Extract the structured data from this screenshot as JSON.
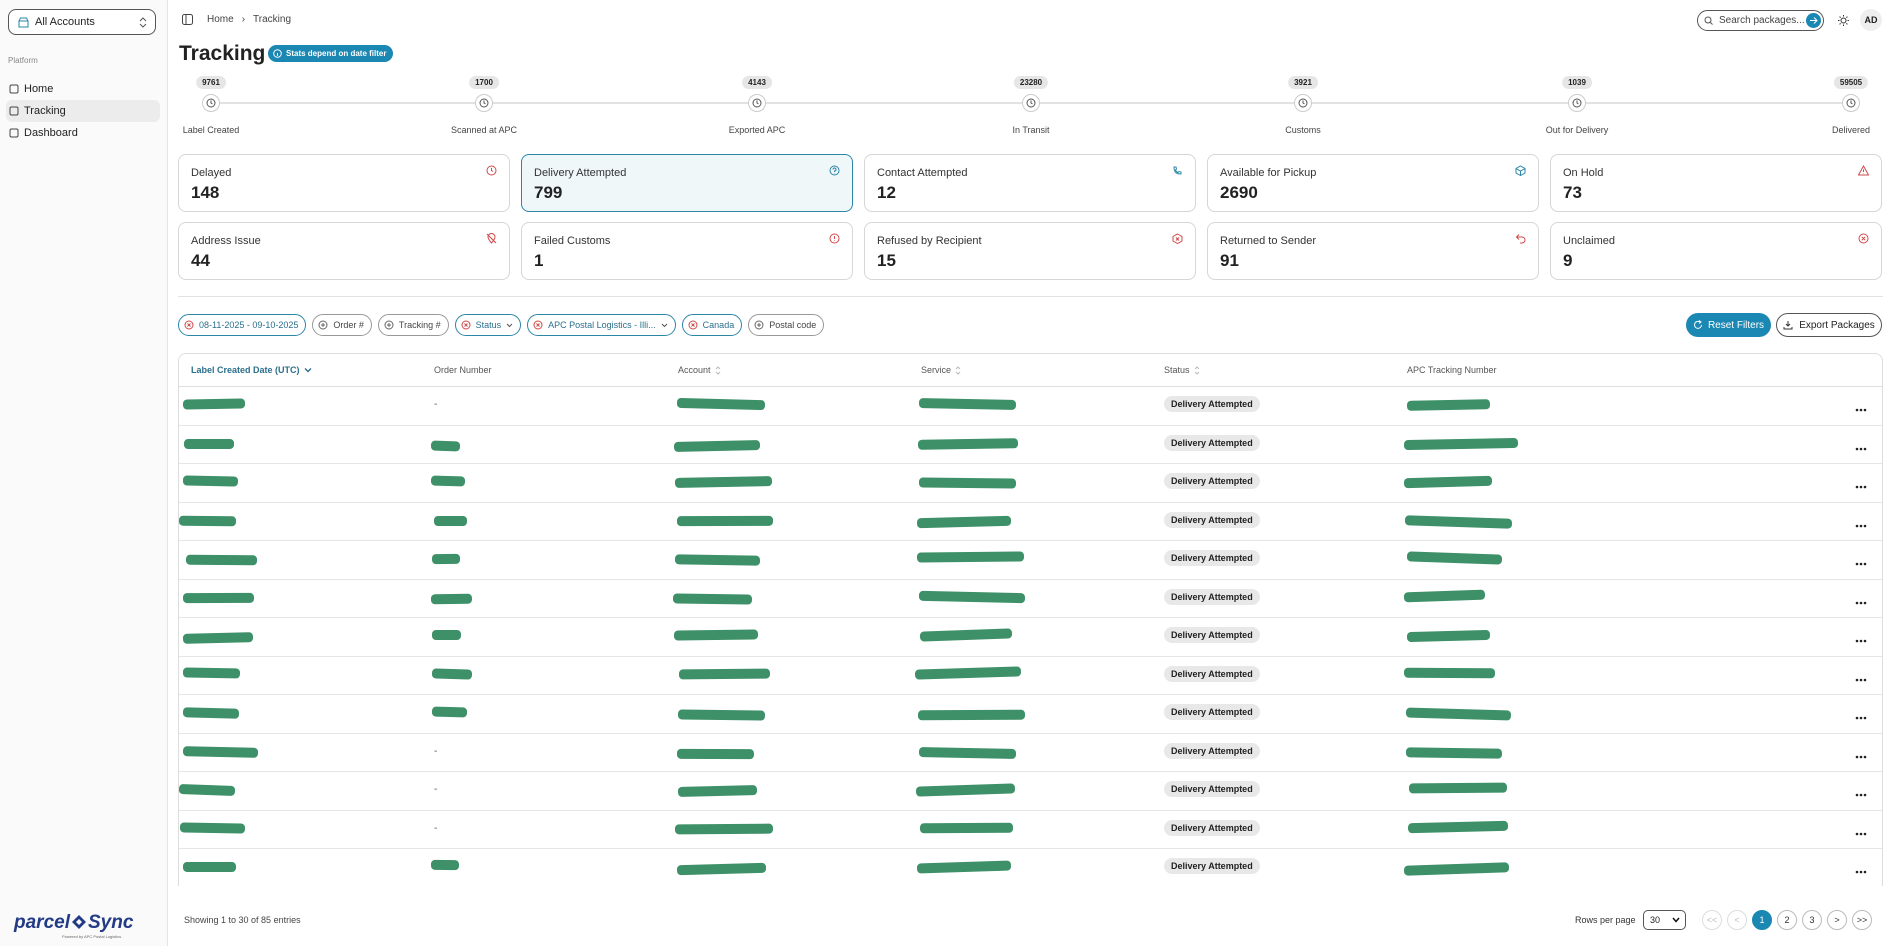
{
  "sidebar": {
    "account": "All Accounts",
    "section": "Platform",
    "nav": [
      "Home",
      "Tracking",
      "Dashboard"
    ],
    "logo_left": "parcel",
    "logo_right": "Sync",
    "logo_tagline": "Powered by APC Postal Logistics"
  },
  "header": {
    "breadcrumb": [
      "Home",
      "Tracking"
    ],
    "search_placeholder": "Search packages...",
    "avatar": "AD"
  },
  "page": {
    "title": "Tracking",
    "badge": "Stats depend on date filter"
  },
  "timeline": [
    {
      "label": "Label Created",
      "count": 9761
    },
    {
      "label": "Scanned at APC",
      "count": 1700
    },
    {
      "label": "Exported APC",
      "count": 4143
    },
    {
      "label": "In Transit",
      "count": 23280
    },
    {
      "label": "Customs",
      "count": 3921
    },
    {
      "label": "Out for Delivery",
      "count": 1039
    },
    {
      "label": "Delivered",
      "count": 59505
    }
  ],
  "cards": [
    {
      "label": "Delayed",
      "value": 148
    },
    {
      "label": "Delivery Attempted",
      "value": 799
    },
    {
      "label": "Contact Attempted",
      "value": 12
    },
    {
      "label": "Available for Pickup",
      "value": 2690
    },
    {
      "label": "On Hold",
      "value": 73
    },
    {
      "label": "Address Issue",
      "value": 44
    },
    {
      "label": "Failed Customs",
      "value": 1
    },
    {
      "label": "Refused by Recipient",
      "value": 15
    },
    {
      "label": "Returned to Sender",
      "value": 91
    },
    {
      "label": "Unclaimed",
      "value": 9
    }
  ],
  "filters": [
    "08-11-2025 - 09-10-2025",
    "Order #",
    "Tracking #",
    "Status",
    "APC Postal Logistics - Illi...",
    "Canada",
    "Postal code"
  ],
  "buttons": {
    "reset": "Reset Filters",
    "export": "Export Packages"
  },
  "table": {
    "columns": [
      "Label Created Date (UTC)",
      "Order Number",
      "Account",
      "Service",
      "Status",
      "APC Tracking Number"
    ],
    "rows": [
      {
        "order": "-",
        "status": "Delivery Attempted"
      },
      {
        "status": "Delivery Attempted"
      },
      {
        "status": "Delivery Attempted"
      },
      {
        "status": "Delivery Attempted"
      },
      {
        "status": "Delivery Attempted"
      },
      {
        "status": "Delivery Attempted"
      },
      {
        "status": "Delivery Attempted"
      },
      {
        "status": "Delivery Attempted"
      },
      {
        "status": "Delivery Attempted"
      },
      {
        "order": "-",
        "status": "Delivery Attempted"
      },
      {
        "order": "-",
        "status": "Delivery Attempted"
      },
      {
        "order": "-",
        "status": "Delivery Attempted"
      },
      {
        "status": "Delivery Attempted"
      }
    ]
  },
  "footer": {
    "showing": "Showing 1 to 30 of 85 entries",
    "rows_per_page_label": "Rows per page",
    "rows_per_page": 30,
    "pages": [
      "<<",
      "<",
      1,
      2,
      3,
      ">",
      ">>"
    ]
  }
}
